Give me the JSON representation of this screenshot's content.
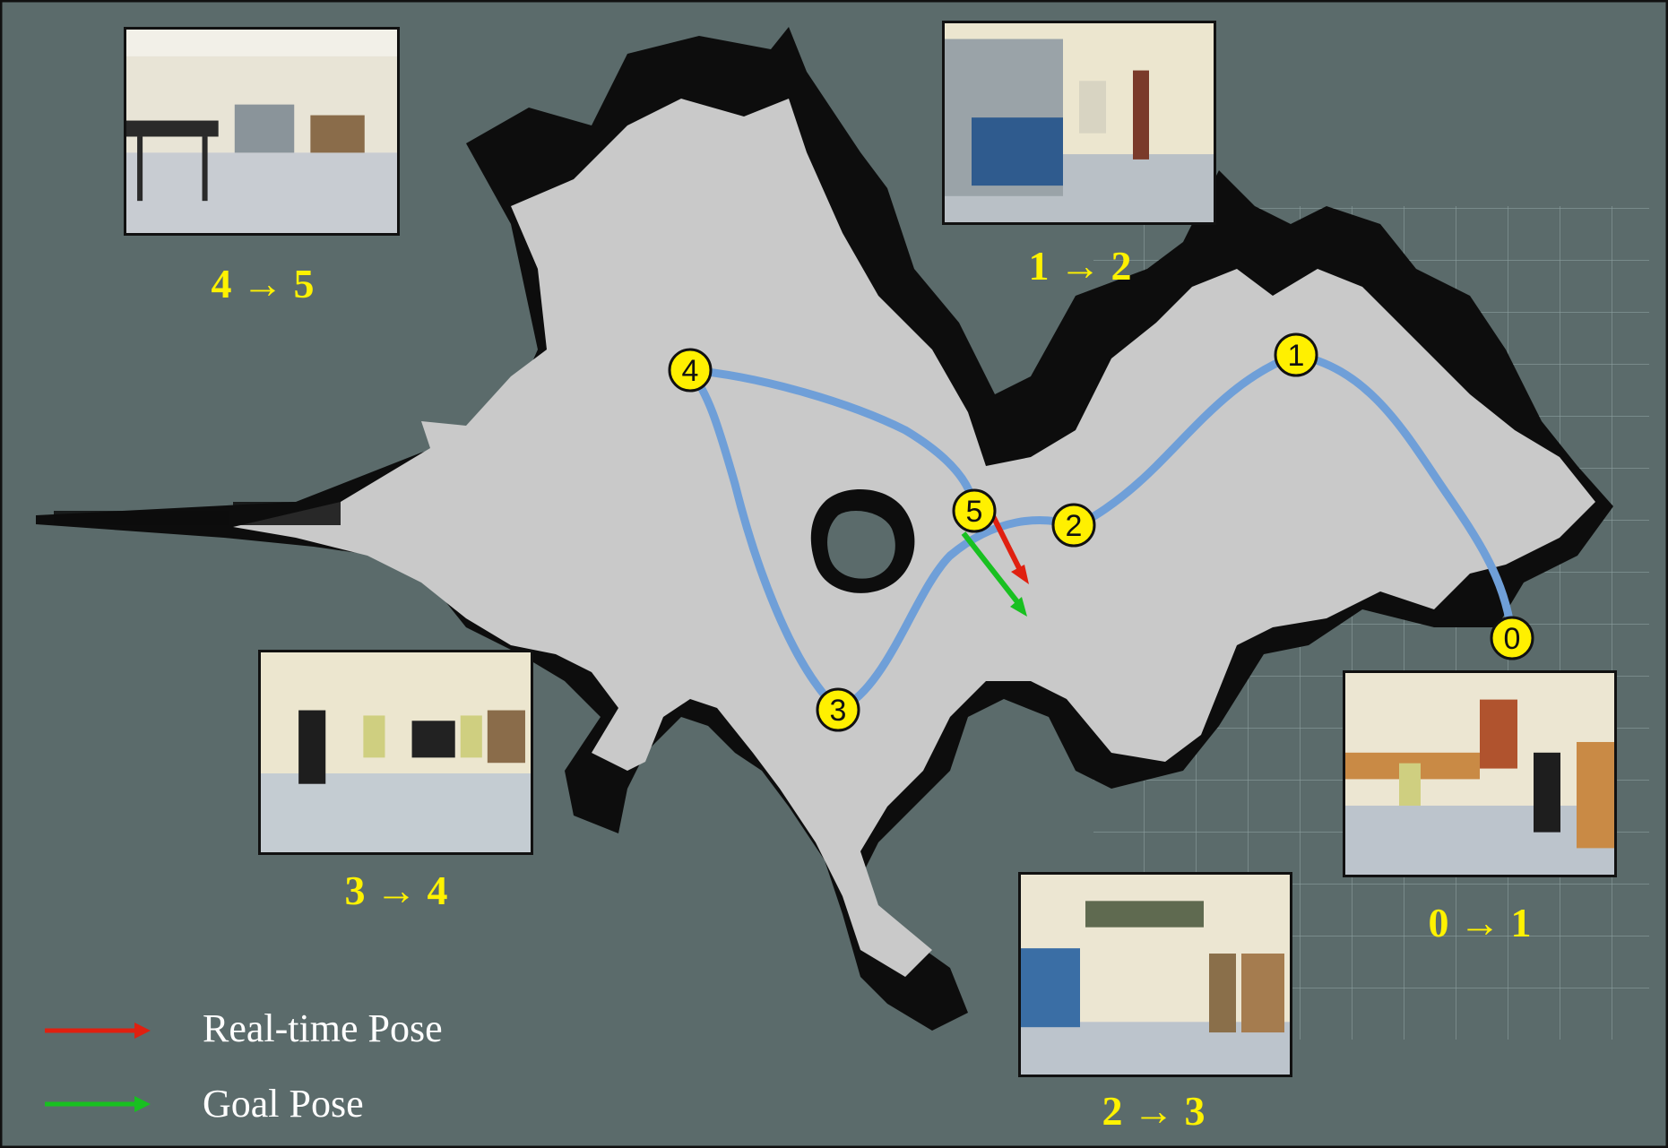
{
  "colors": {
    "background": "#5b6b6b",
    "free_space": "#c9c9c9",
    "obstacle": "#0d0d0d",
    "grid": "#9fb3b3",
    "path": "#6f9fd8",
    "marker_fill": "#fff000",
    "label_text": "#fff200",
    "realtime_pose": "#e02010",
    "goal_pose": "#18c020"
  },
  "waypoints": [
    {
      "label": "0"
    },
    {
      "label": "1"
    },
    {
      "label": "2"
    },
    {
      "label": "3"
    },
    {
      "label": "4"
    },
    {
      "label": "5"
    }
  ],
  "segments": [
    {
      "label": "0 → 1"
    },
    {
      "label": "1 → 2"
    },
    {
      "label": "2 → 3"
    },
    {
      "label": "3 → 4"
    },
    {
      "label": "4 → 5"
    }
  ],
  "legend": {
    "realtime": {
      "label": "Real-time Pose",
      "color": "#e02010"
    },
    "goal": {
      "label": "Goal Pose",
      "color": "#18c020"
    }
  },
  "photo_icons": [
    "office-cubicles-photo",
    "corridor-photo",
    "empty-room-photo",
    "office-chairs-photo",
    "open-office-photo"
  ]
}
